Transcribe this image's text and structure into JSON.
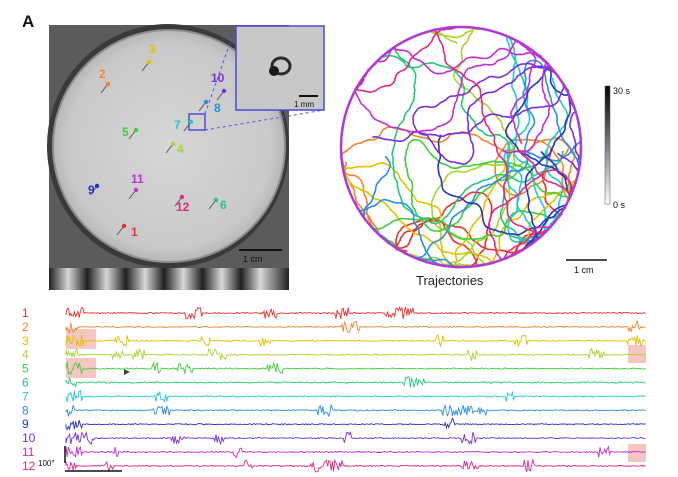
{
  "panel_label": "A",
  "arena": {
    "fish": [
      {
        "id": "1",
        "label": "1",
        "color": "#e8322b"
      },
      {
        "id": "2",
        "label": "2",
        "color": "#f0862f"
      },
      {
        "id": "3",
        "label": "3",
        "color": "#e2c200"
      },
      {
        "id": "4",
        "label": "4",
        "color": "#a5d62a"
      },
      {
        "id": "5",
        "label": "5",
        "color": "#3fcf3a"
      },
      {
        "id": "6",
        "label": "6",
        "color": "#28c77d"
      },
      {
        "id": "7",
        "label": "7",
        "color": "#22c9d4"
      },
      {
        "id": "8",
        "label": "8",
        "color": "#2c8fe0"
      },
      {
        "id": "9",
        "label": "9",
        "color": "#2733c4"
      },
      {
        "id": "10",
        "label": "10",
        "color": "#7a2fd8"
      },
      {
        "id": "11",
        "label": "11",
        "color": "#c62fd6"
      },
      {
        "id": "12",
        "label": "12",
        "color": "#e02a86"
      }
    ],
    "scale_bar": "1 cm",
    "inset_scale_bar": "1 mm"
  },
  "trajectories": {
    "title": "Trajectories",
    "scale_bar": "1 cm",
    "colorbar_top": "30 s",
    "colorbar_bottom": "0 s"
  },
  "traces": {
    "angle_scale": "100°",
    "labels": [
      "1",
      "2",
      "3",
      "4",
      "5",
      "6",
      "7",
      "8",
      "9",
      "10",
      "11",
      "12"
    ],
    "colors": [
      "#e8322b",
      "#f0862f",
      "#e2c200",
      "#a5d62a",
      "#3fcf3a",
      "#28c77d",
      "#22c9d4",
      "#2c8fe0",
      "#2733c4",
      "#7a2fd8",
      "#c62fd6",
      "#e02a86"
    ]
  }
}
